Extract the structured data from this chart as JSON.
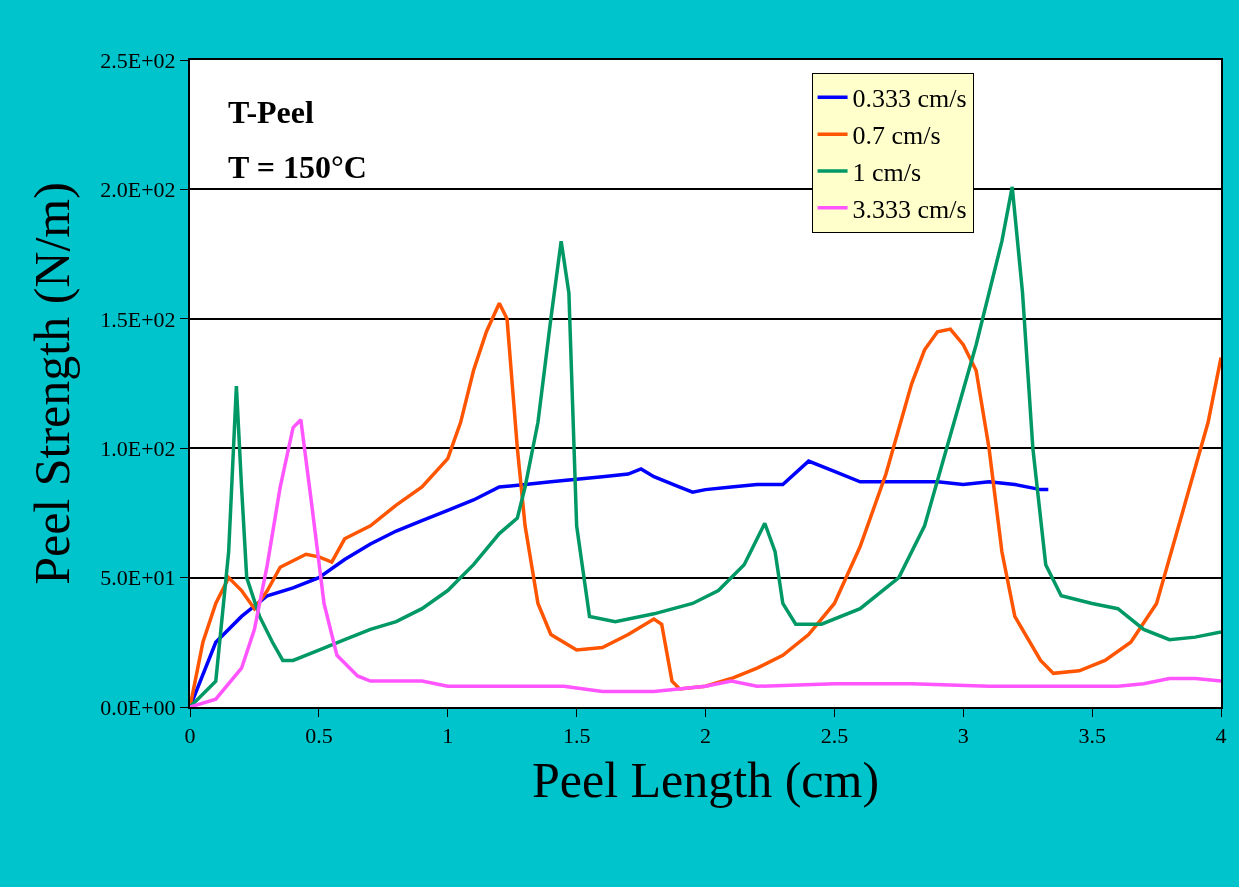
{
  "chart_data": {
    "type": "line",
    "xlabel": "Peel Length (cm)",
    "ylabel": "Peel Strength (N/m)",
    "annotations": [
      "T-Peel",
      "T = 150°C"
    ],
    "xlim": [
      0,
      4
    ],
    "xticks": [
      0,
      0.5,
      1,
      1.5,
      2,
      2.5,
      3,
      3.5,
      4
    ],
    "ylim": [
      0,
      250
    ],
    "yticks": [
      {
        "value": 0,
        "label": "0.0E+00"
      },
      {
        "value": 50,
        "label": "5.0E+01"
      },
      {
        "value": 100,
        "label": "1.0E+02"
      },
      {
        "value": 150,
        "label": "1.5E+02"
      },
      {
        "value": 200,
        "label": "2.0E+02"
      },
      {
        "value": 250,
        "label": "2.5E+02"
      }
    ],
    "grid": "y",
    "legend": "top right",
    "marker": "none",
    "line_style": "solid",
    "series": [
      {
        "name": "0.333 cm/s",
        "color": "#0000ff",
        "x": [
          0,
          0.1,
          0.2,
          0.3,
          0.4,
          0.5,
          0.6,
          0.7,
          0.8,
          0.9,
          1.0,
          1.1,
          1.2,
          1.3,
          1.4,
          1.5,
          1.6,
          1.7,
          1.75,
          1.8,
          1.9,
          1.95,
          2.0,
          2.1,
          2.2,
          2.3,
          2.4,
          2.5,
          2.6,
          2.7,
          2.8,
          2.9,
          3.0,
          3.1,
          3.2,
          3.3,
          3.33
        ],
        "values": [
          0,
          25,
          35,
          43,
          46,
          50,
          57,
          63,
          68,
          72,
          76,
          80,
          85,
          86,
          87,
          88,
          89,
          90,
          92,
          89,
          85,
          83,
          84,
          85,
          86,
          86,
          95,
          91,
          87,
          87,
          87,
          87,
          86,
          87,
          86,
          84,
          84
        ]
      },
      {
        "name": "0.7 cm/s",
        "color": "#ff5500",
        "x": [
          0,
          0.05,
          0.1,
          0.15,
          0.2,
          0.25,
          0.3,
          0.35,
          0.45,
          0.5,
          0.55,
          0.6,
          0.7,
          0.8,
          0.9,
          1.0,
          1.05,
          1.1,
          1.15,
          1.2,
          1.23,
          1.27,
          1.3,
          1.35,
          1.4,
          1.5,
          1.6,
          1.7,
          1.8,
          1.83,
          1.87,
          1.9,
          2.0,
          2.1,
          2.2,
          2.3,
          2.4,
          2.5,
          2.6,
          2.7,
          2.8,
          2.85,
          2.9,
          2.95,
          3.0,
          3.05,
          3.1,
          3.15,
          3.2,
          3.3,
          3.35,
          3.45,
          3.55,
          3.65,
          3.75,
          3.85,
          3.95,
          4.0
        ],
        "values": [
          0,
          25,
          40,
          50,
          45,
          38,
          45,
          54,
          59,
          58,
          56,
          65,
          70,
          78,
          85,
          96,
          110,
          130,
          145,
          156,
          150,
          100,
          70,
          40,
          28,
          22,
          23,
          28,
          34,
          32,
          10,
          7,
          8,
          11,
          15,
          20,
          28,
          40,
          62,
          90,
          125,
          138,
          145,
          146,
          140,
          130,
          100,
          60,
          35,
          18,
          13,
          14,
          18,
          25,
          40,
          75,
          110,
          135
        ]
      },
      {
        "name": "1 cm/s",
        "color": "#009966",
        "x": [
          0,
          0.1,
          0.15,
          0.18,
          0.2,
          0.22,
          0.27,
          0.32,
          0.36,
          0.4,
          0.5,
          0.6,
          0.7,
          0.8,
          0.9,
          1.0,
          1.1,
          1.2,
          1.27,
          1.3,
          1.35,
          1.4,
          1.44,
          1.47,
          1.5,
          1.55,
          1.65,
          1.8,
          1.95,
          2.05,
          2.15,
          2.23,
          2.27,
          2.3,
          2.35,
          2.45,
          2.6,
          2.75,
          2.85,
          2.95,
          3.05,
          3.15,
          3.19,
          3.23,
          3.27,
          3.32,
          3.38,
          3.5,
          3.6,
          3.7,
          3.8,
          3.9,
          4.0
        ],
        "values": [
          0,
          10,
          60,
          124,
          85,
          50,
          35,
          25,
          18,
          18,
          22,
          26,
          30,
          33,
          38,
          45,
          55,
          67,
          73,
          85,
          110,
          150,
          180,
          160,
          70,
          35,
          33,
          36,
          40,
          45,
          55,
          71,
          60,
          40,
          32,
          32,
          38,
          50,
          70,
          105,
          140,
          180,
          201,
          160,
          100,
          55,
          43,
          40,
          38,
          30,
          26,
          27,
          29
        ]
      },
      {
        "name": "3.333 cm/s",
        "color": "#ff55ff",
        "x": [
          0,
          0.1,
          0.2,
          0.25,
          0.3,
          0.35,
          0.4,
          0.43,
          0.47,
          0.52,
          0.57,
          0.65,
          0.7,
          0.9,
          1.0,
          1.3,
          1.45,
          1.6,
          1.8,
          2.0,
          2.1,
          2.2,
          2.5,
          2.8,
          3.1,
          3.4,
          3.6,
          3.7,
          3.8,
          3.9,
          4.0
        ],
        "values": [
          0,
          3,
          15,
          30,
          55,
          85,
          108,
          111,
          80,
          40,
          20,
          12,
          10,
          10,
          8,
          8,
          8,
          6,
          6,
          8,
          10,
          8,
          9,
          9,
          8,
          8,
          8,
          9,
          11,
          11,
          10
        ]
      }
    ]
  }
}
